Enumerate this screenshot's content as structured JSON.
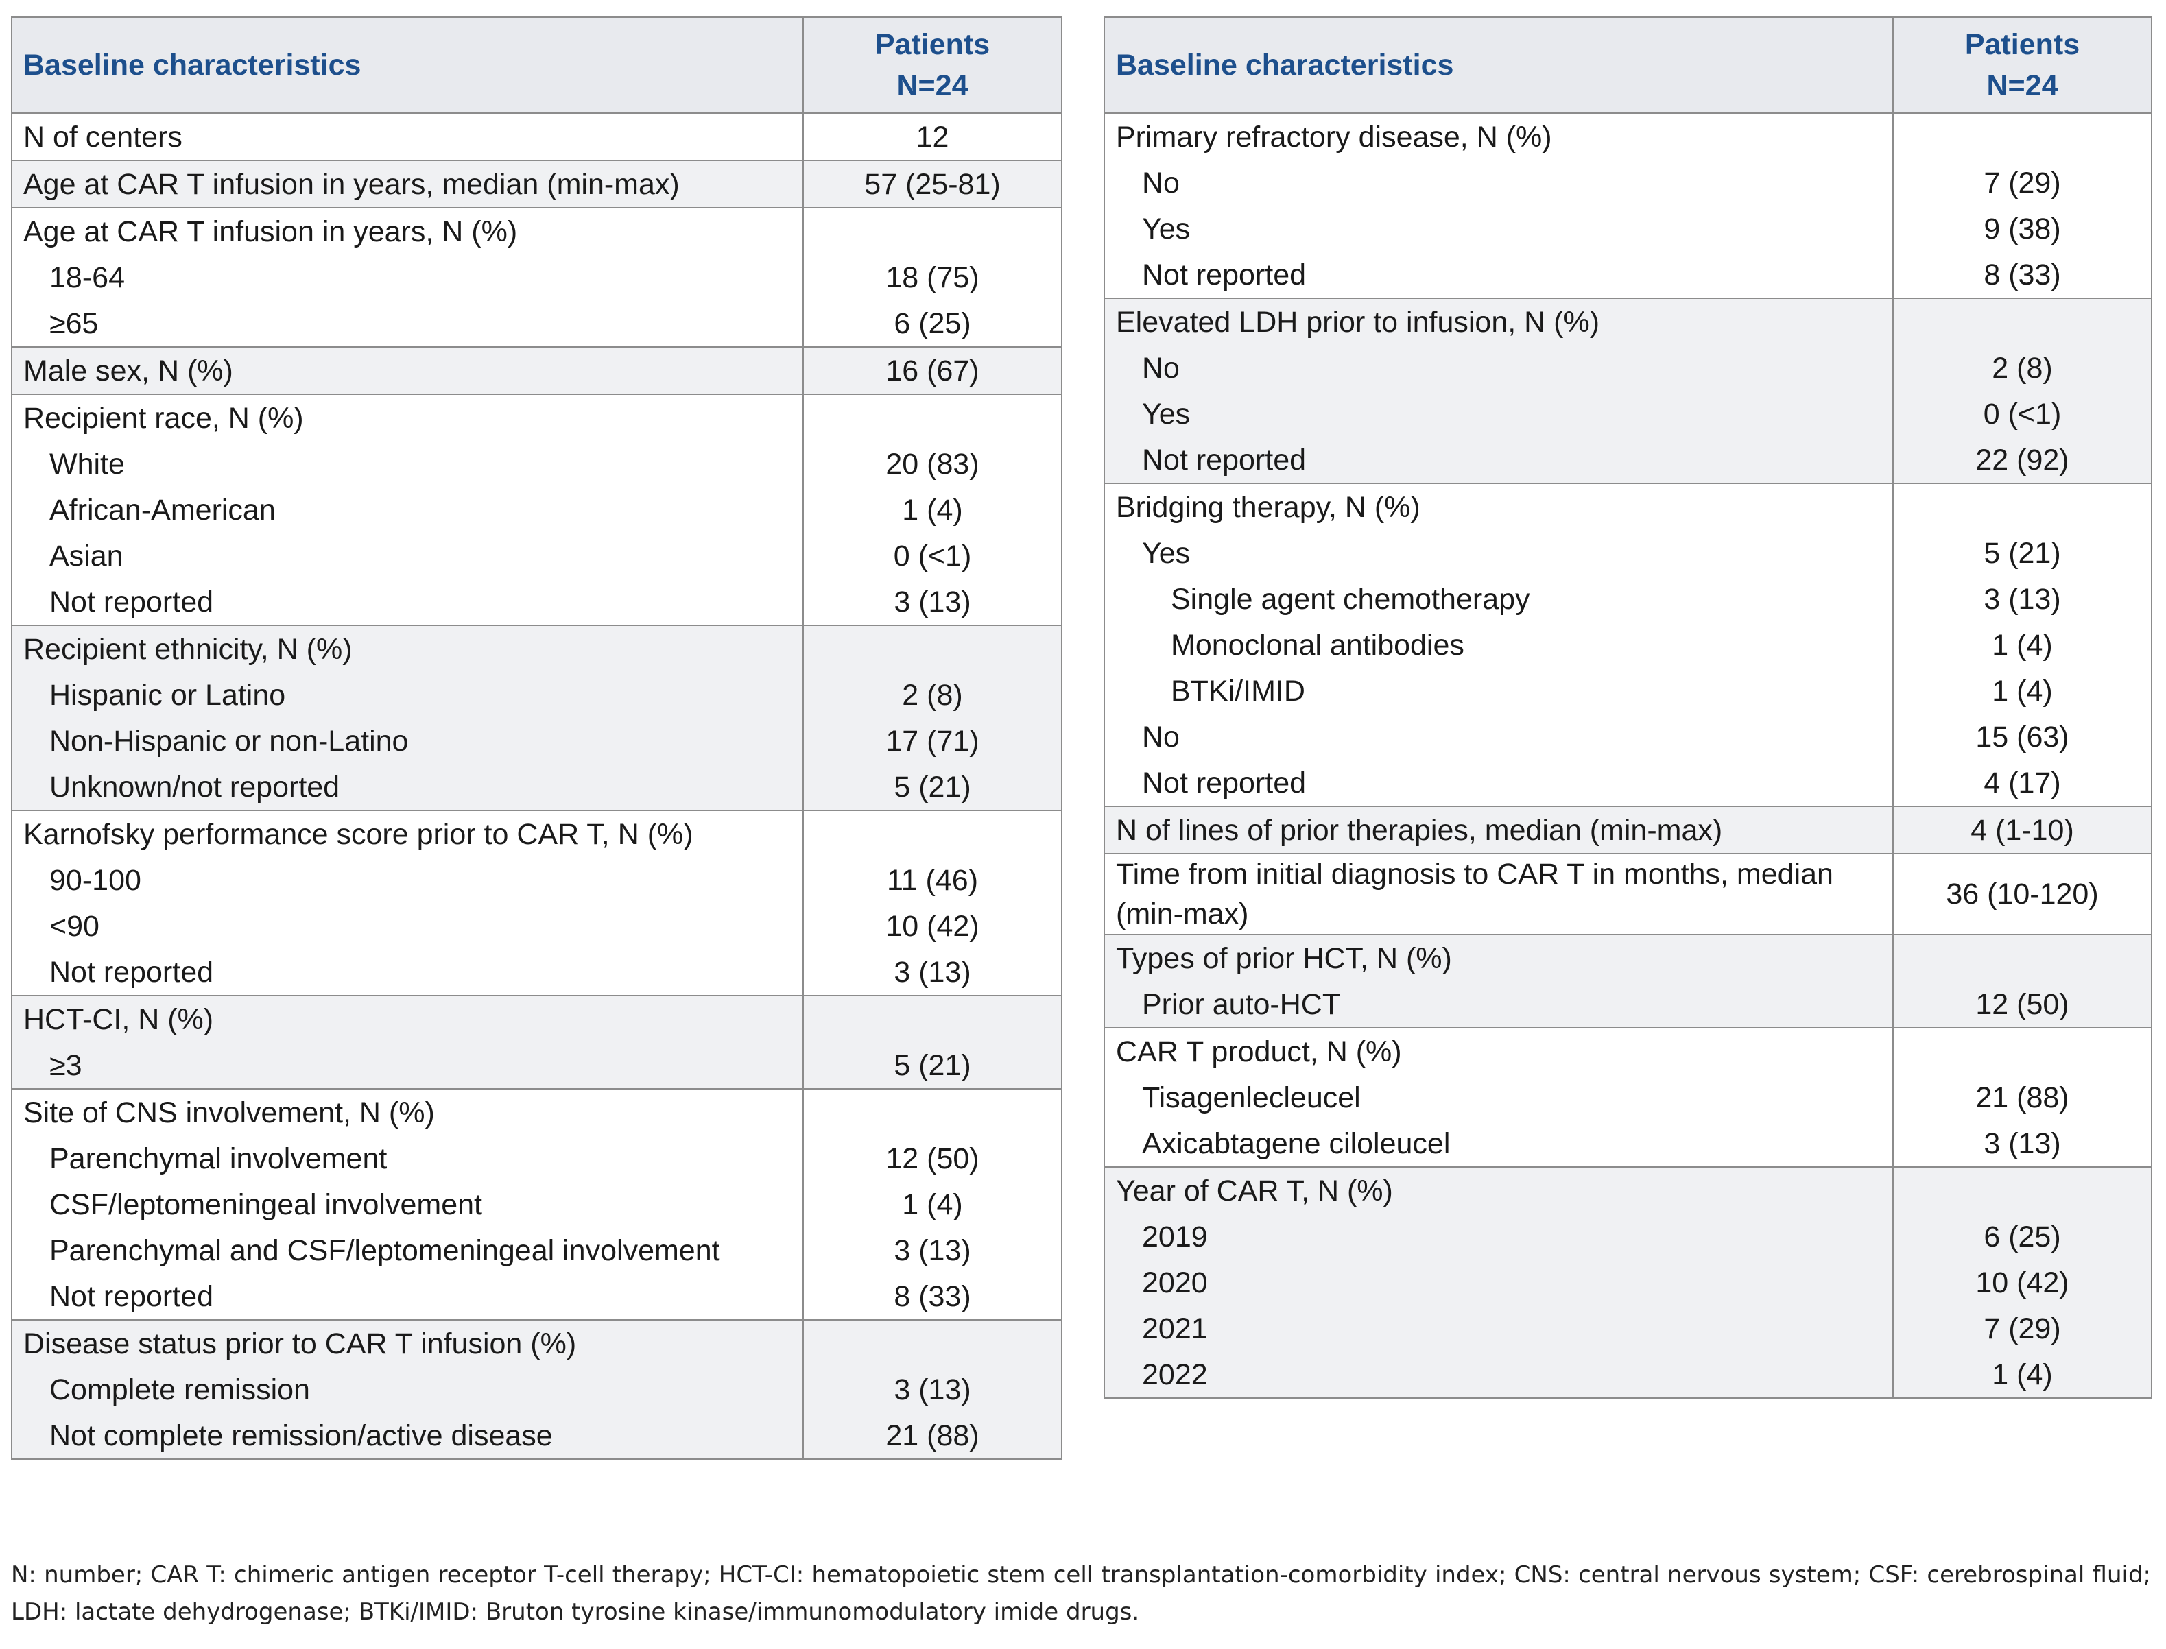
{
  "tables": [
    {
      "header": {
        "label": "Baseline characteristics",
        "patients": "Patients",
        "n": "N=24"
      },
      "groups": [
        {
          "label": "N of centers",
          "value": "12"
        },
        {
          "label": "Age at CAR T infusion in years, median (min-max)",
          "value": "57 (25-81)"
        },
        {
          "label": "Age at CAR T infusion in years, N (%)",
          "items": [
            {
              "label": "18-64",
              "value": "18 (75)"
            },
            {
              "label": "≥65",
              "value": "6 (25)"
            }
          ]
        },
        {
          "label": "Male sex, N (%)",
          "value": "16 (67)"
        },
        {
          "label": "Recipient race, N (%)",
          "items": [
            {
              "label": "White",
              "value": "20 (83)"
            },
            {
              "label": "African-American",
              "value": "1 (4)"
            },
            {
              "label": "Asian",
              "value": "0 (<1)"
            },
            {
              "label": "Not reported",
              "value": "3 (13)"
            }
          ]
        },
        {
          "label": "Recipient ethnicity, N (%)",
          "items": [
            {
              "label": "Hispanic or Latino",
              "value": "2 (8)"
            },
            {
              "label": "Non-Hispanic or non-Latino",
              "value": "17 (71)"
            },
            {
              "label": "Unknown/not reported",
              "value": "5 (21)"
            }
          ]
        },
        {
          "label": "Karnofsky performance score prior to CAR T, N (%)",
          "items": [
            {
              "label": "90-100",
              "value": "11 (46)"
            },
            {
              "label": "<90",
              "value": "10 (42)"
            },
            {
              "label": "Not reported",
              "value": "3 (13)"
            }
          ]
        },
        {
          "label": "HCT-CI, N (%)",
          "items": [
            {
              "label": "≥3",
              "value": "5 (21)"
            }
          ]
        },
        {
          "label": "Site of CNS involvement, N (%)",
          "items": [
            {
              "label": "Parenchymal involvement",
              "value": "12 (50)"
            },
            {
              "label": "CSF/leptomeningeal involvement",
              "value": "1 (4)"
            },
            {
              "label": "Parenchymal and CSF/leptomeningeal involvement",
              "value": "3 (13)"
            },
            {
              "label": "Not reported",
              "value": "8 (33)"
            }
          ]
        },
        {
          "label": "Disease status prior to CAR T infusion (%)",
          "items": [
            {
              "label": "Complete remission",
              "value": "3 (13)"
            },
            {
              "label": "Not complete remission/active disease",
              "value": "21 (88)"
            }
          ]
        }
      ]
    },
    {
      "header": {
        "label": "Baseline characteristics",
        "patients": "Patients",
        "n": "N=24"
      },
      "groups": [
        {
          "label": "Primary refractory disease, N (%)",
          "items": [
            {
              "label": "No",
              "value": "7 (29)"
            },
            {
              "label": "Yes",
              "value": "9 (38)"
            },
            {
              "label": "Not reported",
              "value": "8 (33)"
            }
          ]
        },
        {
          "label": "Elevated LDH prior to infusion, N (%)",
          "items": [
            {
              "label": "No",
              "value": "2 (8)"
            },
            {
              "label": "Yes",
              "value": "0 (<1)"
            },
            {
              "label": "Not reported",
              "value": "22 (92)"
            }
          ]
        },
        {
          "label": "Bridging therapy, N (%)",
          "items": [
            {
              "label": "Yes",
              "value": "5 (21)",
              "items": [
                {
                  "label": "Single agent chemotherapy",
                  "value": "3 (13)"
                },
                {
                  "label": "Monoclonal antibodies",
                  "value": "1 (4)"
                },
                {
                  "label": "BTKi/IMID",
                  "value": "1 (4)"
                }
              ]
            },
            {
              "label": "No",
              "value": "15 (63)"
            },
            {
              "label": "Not reported",
              "value": "4 (17)"
            }
          ]
        },
        {
          "label": "N of lines of prior therapies, median (min-max)",
          "value": "4 (1-10)"
        },
        {
          "label": "Time from initial diagnosis to CAR T in months, median (min-max)",
          "value": "36 (10-120)"
        },
        {
          "label": "Types of prior HCT, N (%)",
          "items": [
            {
              "label": "Prior auto-HCT",
              "value": "12 (50)"
            }
          ]
        },
        {
          "label": "CAR T product, N (%)",
          "items": [
            {
              "label": "Tisagenlecleucel",
              "value": "21 (88)"
            },
            {
              "label": "Axicabtagene ciloleucel",
              "value": "3 (13)"
            }
          ]
        },
        {
          "label": "Year of CAR T, N (%)",
          "items": [
            {
              "label": "2019",
              "value": "6 (25)"
            },
            {
              "label": "2020",
              "value": "10 (42)"
            },
            {
              "label": "2021",
              "value": "7 (29)"
            },
            {
              "label": "2022",
              "value": "1 (4)"
            }
          ]
        }
      ]
    }
  ],
  "footnote": "N: number; CAR T: chimeric antigen receptor T-cell therapy; HCT-CI: hematopoietic stem cell transplantation-comorbidity index; CNS: central nervous system; CSF: cerebrospinal fluid; LDH: lactate dehydrogenase; BTKi/IMID: Bruton tyrosine kinase/immunomodulatory imide drugs."
}
